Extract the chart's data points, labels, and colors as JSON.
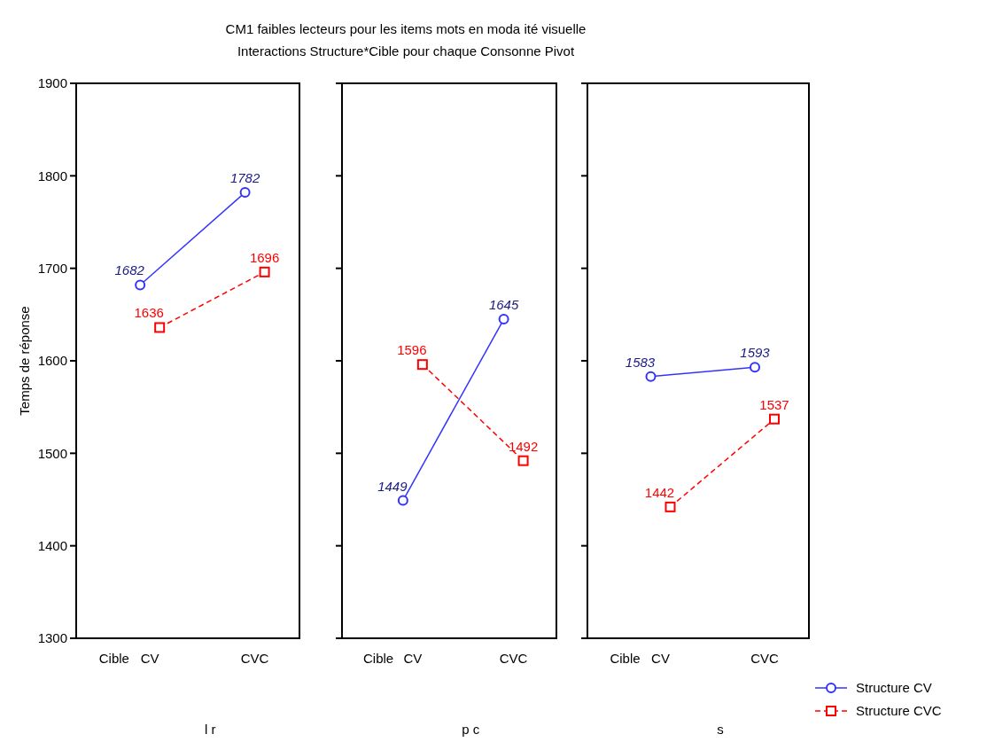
{
  "chart_data": [
    {
      "type": "line",
      "title": "CM1 faibles lecteurs pour les items mots en moda ité visuelle",
      "subtitle": "Interactions Structure*Cible pour chaque Consonne Pivot",
      "ylabel": "Temps de réponse",
      "xlabel": "l r",
      "annotations": [
        "Cible"
      ],
      "categories": [
        "CV",
        "CVC"
      ],
      "ylim": [
        1300,
        1900
      ],
      "yticks": [
        1300,
        1400,
        1500,
        1600,
        1700,
        1800,
        1900
      ],
      "data_labels": true,
      "grid": false,
      "legend": false,
      "series": [
        {
          "color": "#3333ff",
          "values": [
            1682,
            1782
          ],
          "marker": "circle",
          "line_style": "solid"
        },
        {
          "color": "#ff0000",
          "values": [
            1636,
            1696
          ],
          "marker": "square",
          "line_style": "dashed"
        }
      ]
    },
    {
      "type": "line",
      "xlabel": "p c",
      "annotations": [
        "Cible"
      ],
      "categories": [
        "CV",
        "CVC"
      ],
      "ylim": [
        1300,
        1900
      ],
      "yticks": [
        1300,
        1400,
        1500,
        1600,
        1700,
        1800,
        1900
      ],
      "tick_labels": "x",
      "data_labels": true,
      "grid": false,
      "legend": false,
      "series": [
        {
          "color": "#3333ff",
          "values": [
            1449,
            1645
          ],
          "marker": "circle",
          "line_style": "solid"
        },
        {
          "color": "#ff0000",
          "values": [
            1596,
            1492
          ],
          "marker": "square",
          "line_style": "dashed"
        }
      ]
    },
    {
      "type": "line",
      "xlabel": "s",
      "annotations": [
        "Cible"
      ],
      "categories": [
        "CV",
        "CVC"
      ],
      "ylim": [
        1300,
        1900
      ],
      "yticks": [
        1300,
        1400,
        1500,
        1600,
        1700,
        1800,
        1900
      ],
      "tick_labels": "x",
      "data_labels": true,
      "grid": false,
      "legend": "bottom right",
      "series": [
        {
          "name": "Structure CV",
          "color": "#3333ff",
          "values": [
            1583,
            1593
          ],
          "marker": "circle",
          "line_style": "solid"
        },
        {
          "name": "Structure CVC",
          "color": "#ff0000",
          "values": [
            1442,
            1537
          ],
          "marker": "square",
          "line_style": "dashed"
        }
      ]
    }
  ]
}
